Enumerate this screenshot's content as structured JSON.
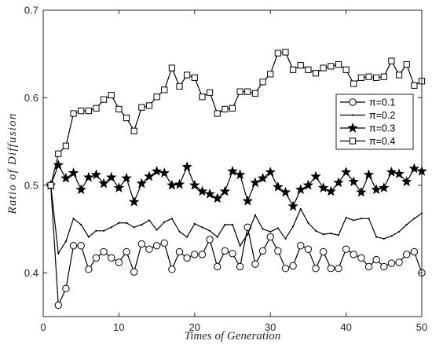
{
  "chart_data": {
    "type": "line",
    "title": "",
    "xlabel": "Times of Generation",
    "ylabel": "Ratio of Diffusion",
    "xlim": [
      0,
      50
    ],
    "ylim": [
      0.35,
      0.7
    ],
    "xticks": [
      0,
      10,
      20,
      30,
      40,
      50
    ],
    "xtick_labels": [
      "0",
      "10",
      "20",
      "30",
      "40",
      "50"
    ],
    "yticks": [
      0.4,
      0.5,
      0.6,
      0.7
    ],
    "ytick_labels": [
      "0.4",
      "0.5",
      "0.6",
      "0.7"
    ],
    "grid": false,
    "legend_position": "right",
    "x": [
      1,
      2,
      3,
      4,
      5,
      6,
      7,
      8,
      9,
      10,
      11,
      12,
      13,
      14,
      15,
      16,
      17,
      18,
      19,
      20,
      21,
      22,
      23,
      24,
      25,
      26,
      27,
      28,
      29,
      30,
      31,
      32,
      33,
      34,
      35,
      36,
      37,
      38,
      39,
      40,
      41,
      42,
      43,
      44,
      45,
      46,
      47,
      48,
      49,
      50
    ],
    "series": [
      {
        "name": "π=0.1",
        "marker": "circle",
        "values": [
          0.5,
          0.363,
          0.382,
          0.431,
          0.431,
          0.404,
          0.417,
          0.424,
          0.417,
          0.412,
          0.424,
          0.401,
          0.433,
          0.427,
          0.431,
          0.434,
          0.404,
          0.424,
          0.417,
          0.421,
          0.421,
          0.438,
          0.407,
          0.425,
          0.422,
          0.407,
          0.452,
          0.41,
          0.425,
          0.441,
          0.425,
          0.405,
          0.408,
          0.431,
          0.427,
          0.405,
          0.424,
          0.405,
          0.405,
          0.427,
          0.421,
          0.417,
          0.407,
          0.415,
          0.407,
          0.411,
          0.412,
          0.421,
          0.424,
          0.4
        ]
      },
      {
        "name": "π=0.2",
        "marker": "dot",
        "values": [
          0.5,
          0.422,
          0.436,
          0.462,
          0.455,
          0.441,
          0.448,
          0.448,
          0.452,
          0.457,
          0.457,
          0.452,
          0.455,
          0.46,
          0.449,
          0.458,
          0.462,
          0.447,
          0.441,
          0.456,
          0.452,
          0.448,
          0.441,
          0.455,
          0.455,
          0.431,
          0.444,
          0.466,
          0.45,
          0.447,
          0.451,
          0.439,
          0.453,
          0.473,
          0.457,
          0.448,
          0.444,
          0.445,
          0.443,
          0.463,
          0.46,
          0.462,
          0.462,
          0.441,
          0.439,
          0.442,
          0.447,
          0.455,
          0.462,
          0.468
        ]
      },
      {
        "name": "π=0.3",
        "marker": "star",
        "values": [
          0.5,
          0.523,
          0.508,
          0.514,
          0.495,
          0.509,
          0.512,
          0.502,
          0.509,
          0.497,
          0.508,
          0.481,
          0.502,
          0.51,
          0.516,
          0.514,
          0.5,
          0.501,
          0.521,
          0.5,
          0.493,
          0.49,
          0.485,
          0.493,
          0.516,
          0.512,
          0.482,
          0.503,
          0.508,
          0.515,
          0.498,
          0.492,
          0.476,
          0.495,
          0.5,
          0.51,
          0.497,
          0.493,
          0.503,
          0.515,
          0.504,
          0.492,
          0.512,
          0.495,
          0.497,
          0.515,
          0.513,
          0.504,
          0.519,
          0.516
        ]
      },
      {
        "name": "π=0.4",
        "marker": "square",
        "values": [
          0.5,
          0.536,
          0.545,
          0.582,
          0.585,
          0.585,
          0.588,
          0.598,
          0.603,
          0.587,
          0.577,
          0.562,
          0.589,
          0.591,
          0.601,
          0.609,
          0.634,
          0.613,
          0.626,
          0.623,
          0.601,
          0.606,
          0.582,
          0.587,
          0.588,
          0.607,
          0.607,
          0.605,
          0.618,
          0.627,
          0.651,
          0.652,
          0.632,
          0.637,
          0.632,
          0.628,
          0.634,
          0.636,
          0.638,
          0.632,
          0.616,
          0.623,
          0.624,
          0.623,
          0.624,
          0.642,
          0.626,
          0.638,
          0.614,
          0.619
        ]
      }
    ]
  }
}
